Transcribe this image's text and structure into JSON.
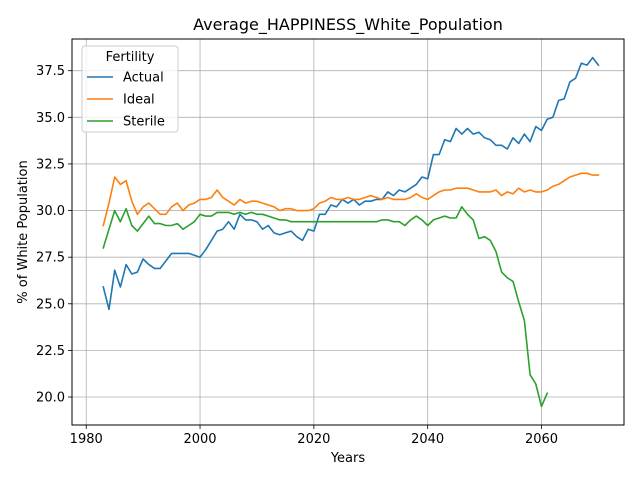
{
  "chart_data": {
    "type": "line",
    "title": "Average_HAPPINESS_White_Population",
    "xlabel": "Years",
    "ylabel": "% of White Population",
    "xlim": [
      1977.5,
      2074.5
    ],
    "ylim": [
      18.5,
      39.2
    ],
    "xticks": [
      1980,
      2000,
      2020,
      2040,
      2060
    ],
    "xtick_labels": [
      "1980",
      "2000",
      "2020",
      "2040",
      "2060"
    ],
    "yticks": [
      20.0,
      22.5,
      25.0,
      27.5,
      30.0,
      32.5,
      35.0,
      37.5
    ],
    "ytick_labels": [
      "20.0",
      "22.5",
      "25.0",
      "27.5",
      "30.0",
      "32.5",
      "35.0",
      "37.5"
    ],
    "grid": true,
    "legend": {
      "title": "Fertility",
      "position": "top-left"
    },
    "series": [
      {
        "name": "Actual",
        "color": "#1f77b4",
        "x": [
          1983,
          1984,
          1985,
          1986,
          1987,
          1988,
          1989,
          1990,
          1991,
          1992,
          1993,
          1994,
          1995,
          1996,
          1997,
          1998,
          1999,
          2000,
          2001,
          2002,
          2003,
          2004,
          2005,
          2006,
          2007,
          2008,
          2009,
          2010,
          2011,
          2012,
          2013,
          2014,
          2015,
          2016,
          2017,
          2018,
          2019,
          2020,
          2021,
          2022,
          2023,
          2024,
          2025,
          2026,
          2027,
          2028,
          2029,
          2030,
          2031,
          2032,
          2033,
          2034,
          2035,
          2036,
          2037,
          2038,
          2039,
          2040,
          2041,
          2042,
          2043,
          2044,
          2045,
          2046,
          2047,
          2048,
          2049,
          2050,
          2051,
          2052,
          2053,
          2054,
          2055,
          2056,
          2057,
          2058,
          2059,
          2060,
          2061,
          2062,
          2063,
          2064,
          2065,
          2066,
          2067,
          2068,
          2069,
          2070
        ],
        "values": [
          25.9,
          24.7,
          26.8,
          25.9,
          27.1,
          26.6,
          26.7,
          27.4,
          27.1,
          26.9,
          26.9,
          27.3,
          27.7,
          27.7,
          27.7,
          27.7,
          27.6,
          27.5,
          27.9,
          28.4,
          28.9,
          29.0,
          29.4,
          29.0,
          29.8,
          29.5,
          29.5,
          29.4,
          29.0,
          29.2,
          28.8,
          28.7,
          28.8,
          28.9,
          28.6,
          28.4,
          29.0,
          28.9,
          29.8,
          29.8,
          30.3,
          30.2,
          30.6,
          30.4,
          30.6,
          30.3,
          30.5,
          30.5,
          30.6,
          30.6,
          31.0,
          30.8,
          31.1,
          31.0,
          31.2,
          31.4,
          31.8,
          31.7,
          33.0,
          33.0,
          33.8,
          33.7,
          34.4,
          34.1,
          34.4,
          34.1,
          34.2,
          33.9,
          33.8,
          33.5,
          33.5,
          33.3,
          33.9,
          33.6,
          34.1,
          33.7,
          34.5,
          34.3,
          34.9,
          35.0,
          35.9,
          36.0,
          36.9,
          37.1,
          37.9,
          37.8,
          38.2,
          37.8
        ]
      },
      {
        "name": "Ideal",
        "color": "#ff7f0e",
        "x": [
          1983,
          1984,
          1985,
          1986,
          1987,
          1988,
          1989,
          1990,
          1991,
          1992,
          1993,
          1994,
          1995,
          1996,
          1997,
          1998,
          1999,
          2000,
          2001,
          2002,
          2003,
          2004,
          2005,
          2006,
          2007,
          2008,
          2009,
          2010,
          2011,
          2012,
          2013,
          2014,
          2015,
          2016,
          2017,
          2018,
          2019,
          2020,
          2021,
          2022,
          2023,
          2024,
          2025,
          2026,
          2027,
          2028,
          2029,
          2030,
          2031,
          2032,
          2033,
          2034,
          2035,
          2036,
          2037,
          2038,
          2039,
          2040,
          2041,
          2042,
          2043,
          2044,
          2045,
          2046,
          2047,
          2048,
          2049,
          2050,
          2051,
          2052,
          2053,
          2054,
          2055,
          2056,
          2057,
          2058,
          2059,
          2060,
          2061,
          2062,
          2063,
          2064,
          2065,
          2066,
          2067,
          2068,
          2069,
          2070
        ],
        "values": [
          29.2,
          30.4,
          31.8,
          31.4,
          31.6,
          30.5,
          29.8,
          30.2,
          30.4,
          30.1,
          29.8,
          29.8,
          30.2,
          30.4,
          30.0,
          30.3,
          30.4,
          30.6,
          30.6,
          30.7,
          31.1,
          30.7,
          30.5,
          30.3,
          30.6,
          30.4,
          30.5,
          30.5,
          30.4,
          30.3,
          30.2,
          30.0,
          30.1,
          30.1,
          30.0,
          30.0,
          30.0,
          30.1,
          30.4,
          30.5,
          30.7,
          30.6,
          30.6,
          30.7,
          30.6,
          30.6,
          30.7,
          30.8,
          30.7,
          30.6,
          30.7,
          30.6,
          30.6,
          30.6,
          30.7,
          30.9,
          30.7,
          30.6,
          30.8,
          31.0,
          31.1,
          31.1,
          31.2,
          31.2,
          31.2,
          31.1,
          31.0,
          31.0,
          31.0,
          31.1,
          30.8,
          31.0,
          30.9,
          31.2,
          31.0,
          31.1,
          31.0,
          31.0,
          31.1,
          31.3,
          31.4,
          31.6,
          31.8,
          31.9,
          32.0,
          32.0,
          31.9,
          31.9
        ]
      },
      {
        "name": "Sterile",
        "color": "#2ca02c",
        "x": [
          1983,
          1984,
          1985,
          1986,
          1987,
          1988,
          1989,
          1990,
          1991,
          1992,
          1993,
          1994,
          1995,
          1996,
          1997,
          1998,
          1999,
          2000,
          2001,
          2002,
          2003,
          2004,
          2005,
          2006,
          2007,
          2008,
          2009,
          2010,
          2011,
          2012,
          2013,
          2014,
          2015,
          2016,
          2017,
          2018,
          2019,
          2020,
          2021,
          2022,
          2023,
          2024,
          2025,
          2026,
          2027,
          2028,
          2029,
          2030,
          2031,
          2032,
          2033,
          2034,
          2035,
          2036,
          2037,
          2038,
          2039,
          2040,
          2041,
          2042,
          2043,
          2044,
          2045,
          2046,
          2047,
          2048,
          2049,
          2050,
          2051,
          2052,
          2053,
          2054,
          2055,
          2056,
          2057,
          2058,
          2059,
          2060,
          2061
        ],
        "values": [
          28.0,
          29.0,
          30.0,
          29.4,
          30.1,
          29.2,
          28.9,
          29.3,
          29.7,
          29.3,
          29.3,
          29.2,
          29.2,
          29.3,
          29.0,
          29.2,
          29.4,
          29.8,
          29.7,
          29.7,
          29.9,
          29.9,
          29.9,
          29.8,
          29.9,
          29.8,
          29.9,
          29.8,
          29.8,
          29.7,
          29.6,
          29.5,
          29.5,
          29.4,
          29.4,
          29.4,
          29.4,
          29.4,
          29.4,
          29.4,
          29.4,
          29.4,
          29.4,
          29.4,
          29.4,
          29.4,
          29.4,
          29.4,
          29.4,
          29.5,
          29.5,
          29.4,
          29.4,
          29.2,
          29.5,
          29.7,
          29.5,
          29.2,
          29.5,
          29.6,
          29.7,
          29.6,
          29.6,
          30.2,
          29.8,
          29.5,
          28.5,
          28.6,
          28.4,
          27.8,
          26.7,
          26.4,
          26.2,
          25.1,
          24.1,
          21.2,
          20.7,
          19.5,
          20.2
        ]
      }
    ]
  }
}
